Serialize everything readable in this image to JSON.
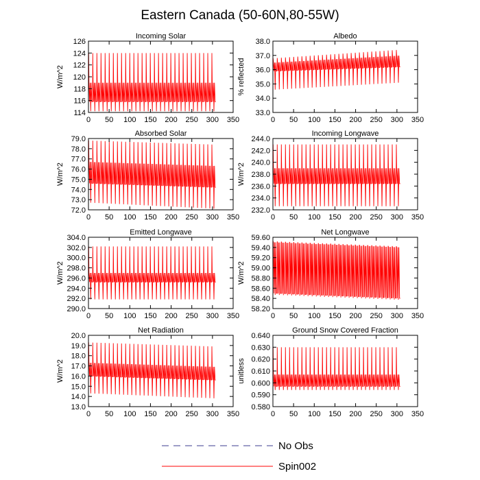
{
  "figure": {
    "title": "Eastern Canada (50-60N,80-55W)"
  },
  "legend": {
    "entries": [
      {
        "label": "No Obs",
        "style": "dashed",
        "color": "#3b3b8f"
      },
      {
        "label": "Spin002",
        "style": "solid",
        "color": "#ff0000"
      }
    ]
  },
  "colors": {
    "series": "#ff0000",
    "axis": "#000000"
  },
  "chart_data": [
    {
      "type": "line",
      "title": "Incoming Solar",
      "ylabel": "W/m^2",
      "xlim": [
        0,
        350
      ],
      "xticks": [
        "0",
        "50",
        "100",
        "150",
        "200",
        "250",
        "300",
        "350"
      ],
      "ylim": [
        114,
        126
      ],
      "yticks": [
        "114",
        "116",
        "118",
        "120",
        "122",
        "124",
        "126"
      ],
      "grid": false,
      "series": [
        {
          "name": "Spin002",
          "x_range": [
            0,
            308
          ],
          "cycles": 31,
          "max": [
            124.0,
            124.0
          ],
          "min": [
            114.2,
            114.2
          ],
          "band_high": [
            119.0,
            119.0
          ],
          "band_low": [
            115.8,
            115.8
          ]
        }
      ]
    },
    {
      "type": "line",
      "title": "Albedo",
      "ylabel": "% reflected",
      "xlim": [
        0,
        350
      ],
      "xticks": [
        "0",
        "50",
        "100",
        "150",
        "200",
        "250",
        "300",
        "350"
      ],
      "ylim": [
        33.0,
        38.0
      ],
      "yticks": [
        "33.0",
        "34.0",
        "35.0",
        "36.0",
        "37.0",
        "38.0"
      ],
      "grid": false,
      "series": [
        {
          "name": "Spin002",
          "x_range": [
            0,
            308
          ],
          "cycles": 31,
          "max": [
            36.8,
            37.4
          ],
          "min": [
            34.6,
            35.1
          ],
          "band_high": [
            36.5,
            37.0
          ],
          "band_low": [
            35.9,
            36.2
          ]
        }
      ]
    },
    {
      "type": "line",
      "title": "Absorbed Solar",
      "ylabel": "W/m^2",
      "xlim": [
        0,
        350
      ],
      "xticks": [
        "0",
        "50",
        "100",
        "150",
        "200",
        "250",
        "300",
        "350"
      ],
      "ylim": [
        72.0,
        79.0
      ],
      "yticks": [
        "72.0",
        "73.0",
        "74.0",
        "75.0",
        "76.0",
        "77.0",
        "78.0",
        "79.0"
      ],
      "grid": false,
      "series": [
        {
          "name": "Spin002",
          "x_range": [
            0,
            308
          ],
          "cycles": 31,
          "max": [
            78.8,
            78.4
          ],
          "min": [
            72.7,
            72.1
          ],
          "band_high": [
            76.7,
            76.3
          ],
          "band_low": [
            74.6,
            74.2
          ]
        }
      ]
    },
    {
      "type": "line",
      "title": "Incoming Longwave",
      "ylabel": "W/m^2",
      "xlim": [
        0,
        350
      ],
      "xticks": [
        "0",
        "50",
        "100",
        "150",
        "200",
        "250",
        "300",
        "350"
      ],
      "ylim": [
        232.0,
        244.0
      ],
      "yticks": [
        "232.0",
        "234.0",
        "236.0",
        "238.0",
        "240.0",
        "242.0",
        "244.0"
      ],
      "grid": false,
      "series": [
        {
          "name": "Spin002",
          "x_range": [
            0,
            308
          ],
          "cycles": 31,
          "max": [
            243.0,
            243.0
          ],
          "min": [
            232.6,
            232.6
          ],
          "band_high": [
            239.0,
            239.0
          ],
          "band_low": [
            236.4,
            236.4
          ]
        }
      ]
    },
    {
      "type": "line",
      "title": "Emitted Longwave",
      "ylabel": "W/m^2",
      "xlim": [
        0,
        350
      ],
      "xticks": [
        "0",
        "50",
        "100",
        "150",
        "200",
        "250",
        "300",
        "350"
      ],
      "ylim": [
        290.0,
        304.0
      ],
      "yticks": [
        "290.0",
        "292.0",
        "294.0",
        "296.0",
        "298.0",
        "300.0",
        "302.0",
        "304.0"
      ],
      "grid": false,
      "series": [
        {
          "name": "Spin002",
          "x_range": [
            0,
            308
          ],
          "cycles": 31,
          "max": [
            302.2,
            302.2
          ],
          "min": [
            291.8,
            291.8
          ],
          "band_high": [
            297.0,
            297.0
          ],
          "band_low": [
            295.2,
            295.2
          ]
        }
      ]
    },
    {
      "type": "line",
      "title": "Net Longwave",
      "ylabel": "W/m^2",
      "xlim": [
        0,
        350
      ],
      "xticks": [
        "0",
        "50",
        "100",
        "150",
        "200",
        "250",
        "300",
        "350"
      ],
      "ylim": [
        58.2,
        59.6
      ],
      "yticks": [
        "58.20",
        "58.40",
        "58.60",
        "58.80",
        "59.00",
        "59.20",
        "59.40",
        "59.60"
      ],
      "grid": false,
      "series": [
        {
          "name": "Spin002",
          "x_range": [
            0,
            308
          ],
          "cycles": 31,
          "max": [
            59.52,
            59.42
          ],
          "min": [
            58.47,
            58.37
          ],
          "band_high": [
            59.5,
            59.4
          ],
          "band_low": [
            58.5,
            58.4
          ]
        }
      ]
    },
    {
      "type": "line",
      "title": "Net Radiation",
      "ylabel": "W/m^2",
      "xlim": [
        0,
        350
      ],
      "xticks": [
        "0",
        "50",
        "100",
        "150",
        "200",
        "250",
        "300",
        "350"
      ],
      "ylim": [
        13.0,
        20.0
      ],
      "yticks": [
        "13.0",
        "14.0",
        "15.0",
        "16.0",
        "17.0",
        "18.0",
        "19.0",
        "20.0"
      ],
      "grid": false,
      "series": [
        {
          "name": "Spin002",
          "x_range": [
            0,
            308
          ],
          "cycles": 31,
          "max": [
            19.3,
            18.9
          ],
          "min": [
            14.3,
            13.8
          ],
          "band_high": [
            17.3,
            16.9
          ],
          "band_low": [
            16.0,
            15.6
          ]
        }
      ]
    },
    {
      "type": "line",
      "title": "Ground Snow Covered Fraction",
      "ylabel": "unitless",
      "xlim": [
        0,
        350
      ],
      "xticks": [
        "0",
        "50",
        "100",
        "150",
        "200",
        "250",
        "300",
        "350"
      ],
      "ylim": [
        0.58,
        0.64
      ],
      "yticks": [
        "0.580",
        "0.590",
        "0.600",
        "0.610",
        "0.620",
        "0.630",
        "0.640"
      ],
      "grid": false,
      "series": [
        {
          "name": "Spin002",
          "x_range": [
            0,
            308
          ],
          "cycles": 31,
          "max": [
            0.63,
            0.63
          ],
          "min": [
            0.594,
            0.594
          ],
          "band_high": [
            0.607,
            0.607
          ],
          "band_low": [
            0.597,
            0.597
          ]
        }
      ]
    }
  ]
}
